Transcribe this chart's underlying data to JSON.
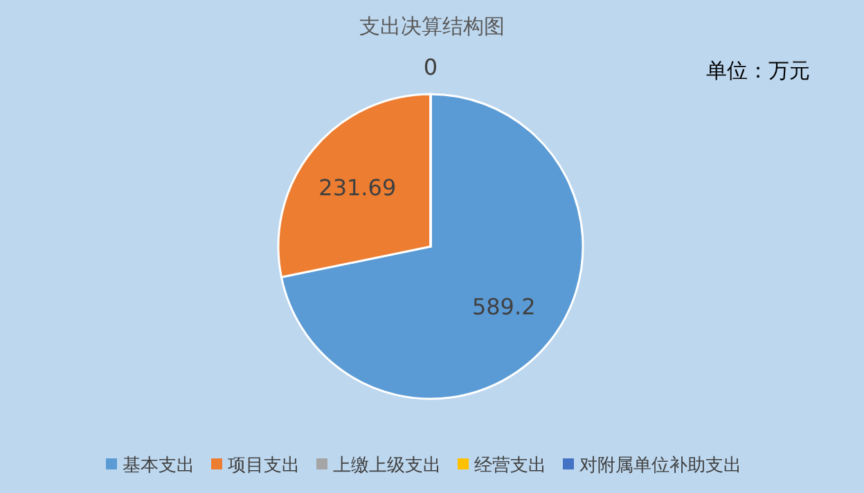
{
  "chart_data": {
    "type": "pie",
    "title": "支出决算结构图",
    "categories": [
      "基本支出",
      "项目支出",
      "上缴上级支出",
      "经营支出",
      "对附属单位补助支出"
    ],
    "values": [
      589.2,
      231.69,
      0,
      0,
      0
    ],
    "colors": [
      "#5b9bd5",
      "#ed7d31",
      "#a5a5a5",
      "#ffc000",
      "#4472c4"
    ],
    "value_labels": [
      "589.2",
      "231.69",
      "0",
      null,
      null
    ],
    "annotations": [
      "单位：万元"
    ],
    "legend": "bottom"
  }
}
